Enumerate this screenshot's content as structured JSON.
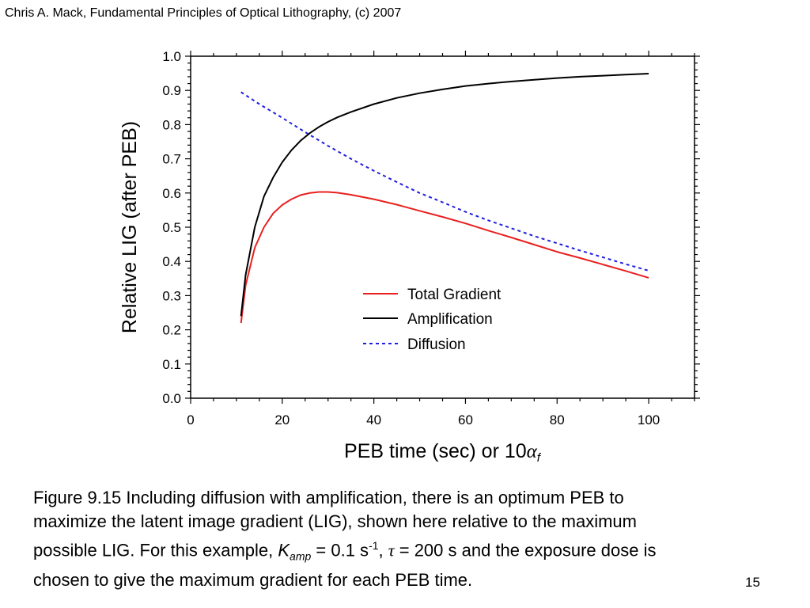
{
  "header": {
    "text": "Chris A. Mack, Fundamental Principles of Optical Lithography, (c) 2007"
  },
  "page_number": "15",
  "caption": {
    "line1": "Figure 9.15  Including diffusion with amplification, there is an optimum PEB to",
    "line2": "maximize the latent image gradient (LIG), shown here relative to the maximum",
    "line3_a": "possible LIG.  For this example, ",
    "k_symbol": "K",
    "k_subscript": "amp",
    "line3_b": " = 0.1 s",
    "line3_sup": "-1",
    "line3_c": ", ",
    "tau_symbol": "τ",
    "line3_d": " = 200 s and the exposure dose is",
    "line4": "chosen to give the maximum gradient for each PEB time."
  },
  "chart_data": {
    "type": "line",
    "ylabel": "Relative LIG (after PEB)",
    "xlabel_prefix": "PEB time (sec) or 10",
    "xlabel_symbol": "α",
    "xlabel_subscript": "f",
    "xlim": [
      0,
      110
    ],
    "ylim": [
      0,
      1.0
    ],
    "x_ticks": [
      0,
      20,
      40,
      60,
      80,
      100
    ],
    "y_ticks": [
      0.0,
      0.1,
      0.2,
      0.3,
      0.4,
      0.5,
      0.6,
      0.7,
      0.8,
      0.9,
      1.0
    ],
    "x_tick_labels": [
      "0",
      "20",
      "40",
      "60",
      "80",
      "100"
    ],
    "y_tick_labels": [
      "0.0",
      "0.1",
      "0.2",
      "0.3",
      "0.4",
      "0.5",
      "0.6",
      "0.7",
      "0.8",
      "0.9",
      "1.0"
    ],
    "grid": false,
    "legend_position": "lower-right",
    "series": [
      {
        "name": "Total Gradient",
        "color": "#e8201e",
        "dash": "solid",
        "x": [
          11,
          12,
          14,
          16,
          18,
          20,
          22,
          24,
          26,
          28,
          30,
          32,
          35,
          40,
          45,
          50,
          55,
          60,
          65,
          70,
          75,
          80,
          85,
          90,
          95,
          100
        ],
        "y": [
          0.22,
          0.33,
          0.44,
          0.5,
          0.54,
          0.565,
          0.582,
          0.594,
          0.6,
          0.603,
          0.603,
          0.601,
          0.595,
          0.582,
          0.566,
          0.548,
          0.53,
          0.511,
          0.49,
          0.47,
          0.449,
          0.428,
          0.41,
          0.391,
          0.372,
          0.352
        ]
      },
      {
        "name": "Amplification",
        "color": "#000000",
        "dash": "solid",
        "x": [
          11,
          12,
          14,
          16,
          18,
          20,
          22,
          24,
          26,
          28,
          30,
          32,
          35,
          40,
          45,
          50,
          55,
          60,
          65,
          70,
          75,
          80,
          85,
          90,
          95,
          100
        ],
        "y": [
          0.24,
          0.36,
          0.5,
          0.59,
          0.645,
          0.69,
          0.725,
          0.753,
          0.775,
          0.793,
          0.808,
          0.821,
          0.837,
          0.86,
          0.878,
          0.892,
          0.903,
          0.913,
          0.92,
          0.926,
          0.931,
          0.936,
          0.94,
          0.943,
          0.946,
          0.949
        ]
      },
      {
        "name": "Diffusion",
        "color": "#1f1fe0",
        "dash": "dotted",
        "x": [
          11,
          15,
          20,
          25,
          30,
          35,
          40,
          45,
          50,
          55,
          60,
          65,
          70,
          75,
          80,
          85,
          90,
          95,
          100
        ],
        "y": [
          0.895,
          0.86,
          0.82,
          0.778,
          0.738,
          0.7,
          0.665,
          0.632,
          0.6,
          0.573,
          0.545,
          0.52,
          0.497,
          0.474,
          0.453,
          0.432,
          0.412,
          0.392,
          0.373
        ]
      }
    ]
  }
}
